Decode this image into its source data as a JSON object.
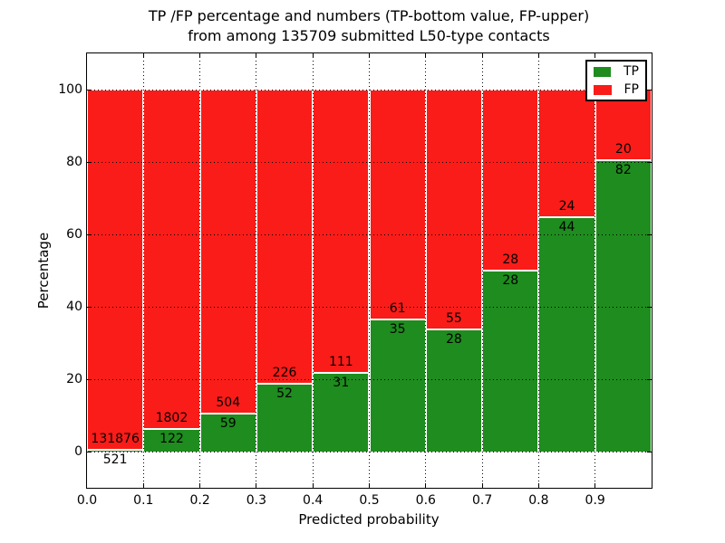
{
  "title": {
    "line1": "TP /FP percentage and numbers (TP-bottom value, FP-upper)",
    "line2": "from among 135709 submitted L50-type contacts"
  },
  "axes": {
    "x_label": "Predicted probability",
    "y_label": "Percentage",
    "x_ticks": [
      "0.0",
      "0.1",
      "0.2",
      "0.3",
      "0.4",
      "0.5",
      "0.6",
      "0.7",
      "0.8",
      "0.9"
    ],
    "y_ticks": [
      "0",
      "20",
      "40",
      "60",
      "80",
      "100"
    ],
    "xlim": [
      0.0,
      1.0
    ],
    "ylim": [
      -10,
      110
    ],
    "grid_style": "dotted"
  },
  "legend": {
    "position": "upper right",
    "items": [
      {
        "label": "TP",
        "color": "#1e8c1e"
      },
      {
        "label": "FP",
        "color": "#fa1c18"
      }
    ]
  },
  "chart_data": {
    "type": "bar",
    "stacked": true,
    "normalized_to_percent": true,
    "title": "TP /FP percentage and numbers (TP-bottom value, FP-upper) from among 135709 submitted L50-type contacts",
    "xlabel": "Predicted probability",
    "ylabel": "Percentage",
    "categories": [
      "0.0-0.1",
      "0.1-0.2",
      "0.2-0.3",
      "0.3-0.4",
      "0.4-0.5",
      "0.5-0.6",
      "0.6-0.7",
      "0.7-0.8",
      "0.8-0.9",
      "0.9-1.0"
    ],
    "bin_edges": [
      0.0,
      0.1,
      0.2,
      0.3,
      0.4,
      0.5,
      0.6,
      0.7,
      0.8,
      0.9,
      1.0
    ],
    "series": [
      {
        "name": "TP",
        "color": "#1e8c1e",
        "counts": [
          521,
          122,
          59,
          52,
          31,
          35,
          28,
          28,
          44,
          82
        ]
      },
      {
        "name": "FP",
        "color": "#fa1c18",
        "counts": [
          131876,
          1802,
          504,
          226,
          111,
          61,
          55,
          28,
          24,
          20
        ]
      }
    ],
    "tp_percent": [
      0.39,
      6.34,
      10.48,
      18.71,
      21.83,
      36.46,
      33.73,
      50.0,
      64.71,
      80.39
    ],
    "total_contacts": 135709,
    "xlim": [
      0.0,
      1.0
    ],
    "ylim": [
      -10,
      110
    ],
    "grid": true,
    "legend_position": "upper right"
  }
}
